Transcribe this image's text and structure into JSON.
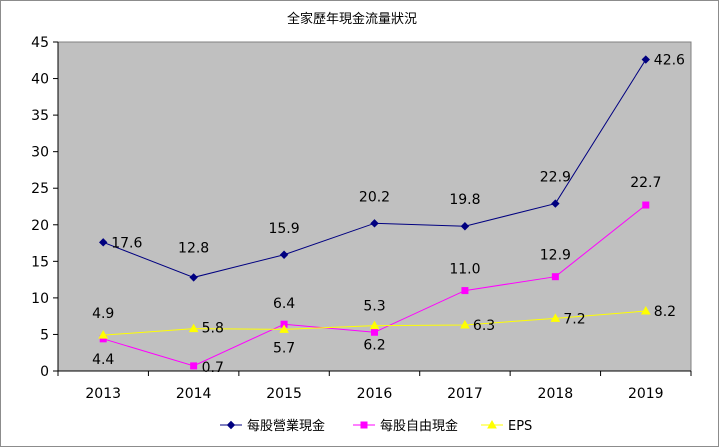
{
  "chart_data": {
    "type": "line",
    "title": "全家歷年現金流量狀況",
    "xlabel": "",
    "ylabel": "",
    "categories": [
      "2013",
      "2014",
      "2015",
      "2016",
      "2017",
      "2018",
      "2019"
    ],
    "ylim": [
      0,
      45
    ],
    "yticks": [
      0,
      5,
      10,
      15,
      20,
      25,
      30,
      35,
      40,
      45
    ],
    "y_tick_labels": [
      "0",
      "5",
      "10",
      "15",
      "20",
      "25",
      "30",
      "35",
      "40",
      "45"
    ],
    "grid": false,
    "plot_background": "#c0c0c0",
    "legend_position": "bottom",
    "series": [
      {
        "name": "每股營業現金",
        "color": "#000080",
        "marker": "diamond",
        "values": [
          17.6,
          12.8,
          15.9,
          20.2,
          19.8,
          22.9,
          42.6
        ],
        "labels": [
          "17.6",
          "12.8",
          "15.9",
          "20.2",
          "19.8",
          "22.9",
          "42.6"
        ]
      },
      {
        "name": "每股自由現金",
        "color": "#ff00ff",
        "marker": "square",
        "values": [
          4.4,
          0.7,
          6.4,
          5.3,
          11.0,
          12.9,
          22.7
        ],
        "labels": [
          "4.4",
          "0.7",
          "6.4",
          "5.3",
          "11.0",
          "12.9",
          "22.7"
        ]
      },
      {
        "name": "EPS",
        "color": "#ffff00",
        "marker": "triangle",
        "values": [
          4.9,
          5.8,
          5.7,
          6.2,
          6.3,
          7.2,
          8.2
        ],
        "labels": [
          "4.9",
          "5.8",
          "5.7",
          "6.2",
          "6.3",
          "7.2",
          "8.2"
        ]
      }
    ]
  }
}
